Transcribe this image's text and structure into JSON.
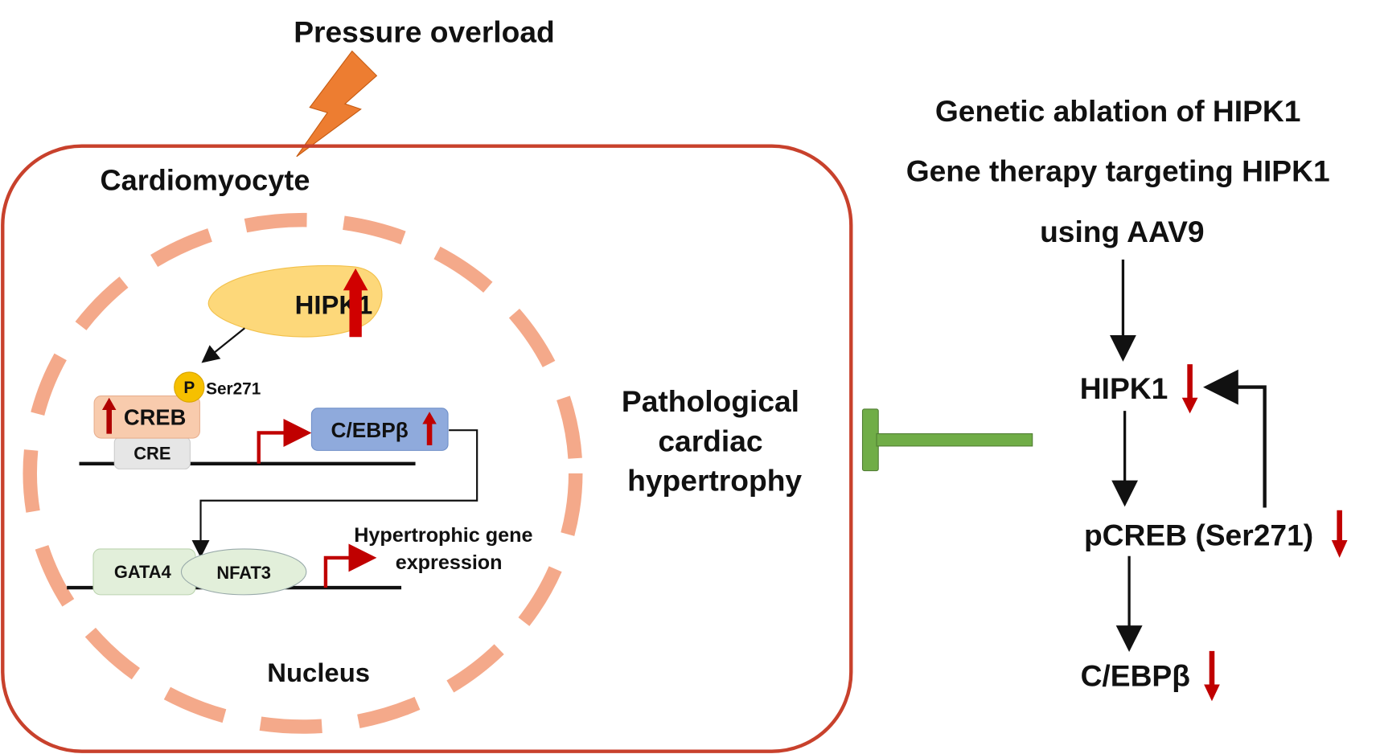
{
  "stimulus": "Pressure overload",
  "cell_label": "Cardiomyocyte",
  "nucleus_label": "Nucleus",
  "hipk1": "HIPK1",
  "phospho": "P",
  "site": "Ser271",
  "creb": "CREB",
  "cre": "CRE",
  "cebpb": "C/EBPβ",
  "gata4": "GATA4",
  "nfat3": "NFAT3",
  "hyper_gene": [
    "Hypertrophic gene",
    "expression"
  ],
  "outcome": [
    "Pathological",
    "cardiac",
    "hypertrophy"
  ],
  "intervention": [
    "Genetic ablation of HIPK1",
    "Gene therapy targeting HIPK1",
    "using AAV9"
  ],
  "cascade": [
    "HIPK1",
    "pCREB (Ser271)",
    "C/EBPβ"
  ],
  "colors": {
    "cell_border": "#c8412c",
    "nucleus_dash": "#f4a98a",
    "up_arrow": "#c00000",
    "inhibit": "#70ad47",
    "bolt": "#ed7d31"
  }
}
